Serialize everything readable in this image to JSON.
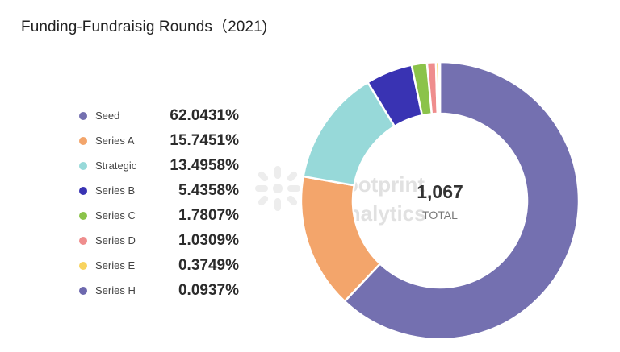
{
  "header": {
    "title": "Funding-Fundraisig Rounds（2021)"
  },
  "watermark": {
    "line1": "Footprint",
    "line2": "Analytics"
  },
  "center": {
    "value": "1,067",
    "label": "TOTAL"
  },
  "legend": [
    {
      "label": "Seed",
      "value": "62.0431%",
      "color": "#7470b0"
    },
    {
      "label": "Series A",
      "value": "15.7451%",
      "color": "#f3a56b"
    },
    {
      "label": "Strategic",
      "value": "13.4958%",
      "color": "#97d9d9"
    },
    {
      "label": "Series B",
      "value": "5.4358%",
      "color": "#3933b3"
    },
    {
      "label": "Series C",
      "value": "1.7807%",
      "color": "#8bc34a"
    },
    {
      "label": "Series D",
      "value": "1.0309%",
      "color": "#ef8d8d"
    },
    {
      "label": "Series E",
      "value": "0.3749%",
      "color": "#f8d35e"
    },
    {
      "label": "Series H",
      "value": "0.0937%",
      "color": "#6d68ae"
    }
  ],
  "chart_data": {
    "type": "pie",
    "categories": [
      "Seed",
      "Series A",
      "Strategic",
      "Series B",
      "Series C",
      "Series D",
      "Series E",
      "Series H"
    ],
    "values": [
      62.0431,
      15.7451,
      13.4958,
      5.4358,
      1.7807,
      1.0309,
      0.3749,
      0.0937
    ],
    "title": "Funding-Fundraisig Rounds（2021)",
    "total": 1067,
    "legend_position": "left"
  }
}
